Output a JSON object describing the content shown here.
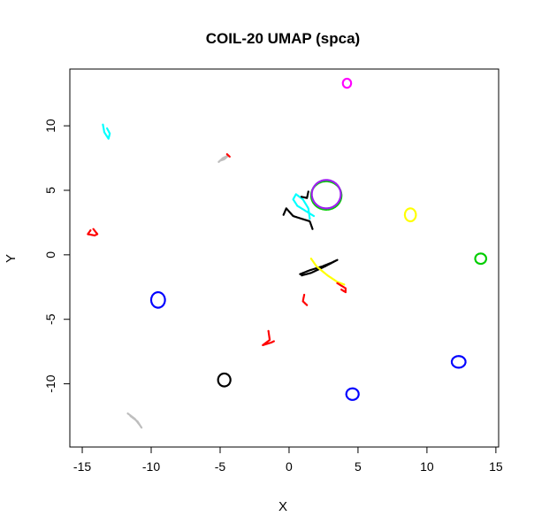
{
  "chart_data": {
    "type": "scatter",
    "title": "COIL-20 UMAP (spca)",
    "xlabel": "X",
    "ylabel": "Y",
    "xlim": [
      -15.9,
      15.2
    ],
    "ylim": [
      -14.9,
      14.4
    ],
    "xticks": [
      -15,
      -10,
      -5,
      0,
      5,
      10,
      15
    ],
    "yticks": [
      -10,
      -5,
      0,
      5,
      10
    ],
    "grid": false,
    "legend": "none",
    "clusters": [
      {
        "color": "#ff00ff",
        "shape": "ring",
        "cx": 4.2,
        "cy": 13.3,
        "rx": 0.3,
        "ry": 0.35
      },
      {
        "color": "#00ffff",
        "shape": "path",
        "points": [
          [
            -13.5,
            10.1
          ],
          [
            -13.4,
            9.5
          ],
          [
            -13.1,
            9.0
          ],
          [
            -13.0,
            9.4
          ],
          [
            -13.2,
            9.8
          ]
        ]
      },
      {
        "color": "#bebebe",
        "shape": "path",
        "points": [
          [
            -5.1,
            7.2
          ],
          [
            -4.8,
            7.5
          ],
          [
            -4.4,
            7.7
          ],
          [
            -4.7,
            7.4
          ],
          [
            -5.0,
            7.3
          ]
        ]
      },
      {
        "color": "#ff0000",
        "shape": "path",
        "points": [
          [
            -4.5,
            7.8
          ],
          [
            -4.3,
            7.6
          ]
        ]
      },
      {
        "color": "#ff0000",
        "shape": "path",
        "points": [
          [
            -14.4,
            1.9
          ],
          [
            -14.6,
            1.6
          ],
          [
            -14.1,
            1.5
          ],
          [
            -13.9,
            1.6
          ],
          [
            -14.2,
            2.0
          ]
        ]
      },
      {
        "color": "#00ffff",
        "shape": "path",
        "points": [
          [
            1.5,
            2.8
          ],
          [
            1.4,
            3.6
          ],
          [
            1.0,
            4.3
          ],
          [
            0.5,
            4.7
          ],
          [
            0.3,
            4.3
          ],
          [
            0.6,
            3.8
          ],
          [
            1.2,
            3.4
          ],
          [
            1.8,
            3.0
          ]
        ]
      },
      {
        "color": "#00cd00",
        "shape": "ring",
        "cx": 2.7,
        "cy": 4.6,
        "rx": 1.1,
        "ry": 1.1
      },
      {
        "color": "#a020f0",
        "shape": "ring",
        "cx": 2.7,
        "cy": 4.7,
        "rx": 1.05,
        "ry": 1.1
      },
      {
        "color": "#000000",
        "shape": "path",
        "points": [
          [
            -0.4,
            3.1
          ],
          [
            -0.2,
            3.6
          ],
          [
            0.3,
            3.0
          ],
          [
            0.9,
            2.8
          ],
          [
            1.5,
            2.6
          ],
          [
            1.7,
            2.0
          ]
        ]
      },
      {
        "color": "#000000",
        "shape": "path",
        "points": [
          [
            0.9,
            4.5
          ],
          [
            1.3,
            4.4
          ],
          [
            1.4,
            4.9
          ]
        ]
      },
      {
        "color": "#ffff00",
        "shape": "ring",
        "cx": 8.8,
        "cy": 3.1,
        "rx": 0.4,
        "ry": 0.5
      },
      {
        "color": "#00cd00",
        "shape": "ring",
        "cx": 13.9,
        "cy": -0.3,
        "rx": 0.4,
        "ry": 0.4
      },
      {
        "color": "#000000",
        "shape": "path",
        "points": [
          [
            0.8,
            -1.5
          ],
          [
            1.5,
            -1.2
          ],
          [
            2.4,
            -0.9
          ],
          [
            3.1,
            -0.6
          ],
          [
            3.5,
            -0.4
          ],
          [
            2.6,
            -0.9
          ],
          [
            1.6,
            -1.4
          ],
          [
            0.9,
            -1.6
          ]
        ]
      },
      {
        "color": "#ffff00",
        "shape": "path",
        "points": [
          [
            1.6,
            -0.3
          ],
          [
            2.0,
            -0.9
          ],
          [
            2.8,
            -1.6
          ],
          [
            3.5,
            -2.1
          ],
          [
            4.0,
            -2.3
          ]
        ]
      },
      {
        "color": "#ff0000",
        "shape": "path",
        "points": [
          [
            3.5,
            -2.2
          ],
          [
            4.1,
            -2.6
          ],
          [
            4.1,
            -2.9
          ],
          [
            3.8,
            -2.7
          ]
        ]
      },
      {
        "color": "#ff0000",
        "shape": "path",
        "points": [
          [
            1.1,
            -3.1
          ],
          [
            1.0,
            -3.6
          ],
          [
            1.3,
            -3.9
          ]
        ]
      },
      {
        "color": "#0000ff",
        "shape": "ring",
        "cx": -9.5,
        "cy": -3.5,
        "rx": 0.5,
        "ry": 0.6
      },
      {
        "color": "#ff0000",
        "shape": "path",
        "points": [
          [
            -1.5,
            -5.9
          ],
          [
            -1.4,
            -6.6
          ],
          [
            -1.9,
            -7.0
          ],
          [
            -1.3,
            -6.8
          ],
          [
            -1.1,
            -6.7
          ]
        ]
      },
      {
        "color": "#0000ff",
        "shape": "ring",
        "cx": 12.3,
        "cy": -8.3,
        "rx": 0.5,
        "ry": 0.45
      },
      {
        "color": "#000000",
        "shape": "ring",
        "cx": -4.7,
        "cy": -9.7,
        "rx": 0.45,
        "ry": 0.5
      },
      {
        "color": "#0000ff",
        "shape": "ring",
        "cx": 4.6,
        "cy": -10.8,
        "rx": 0.45,
        "ry": 0.45
      },
      {
        "color": "#bebebe",
        "shape": "path",
        "points": [
          [
            -11.7,
            -12.3
          ],
          [
            -11.2,
            -12.7
          ],
          [
            -10.9,
            -13.1
          ],
          [
            -10.7,
            -13.4
          ],
          [
            -11.0,
            -12.9
          ],
          [
            -11.5,
            -12.5
          ]
        ]
      }
    ]
  }
}
